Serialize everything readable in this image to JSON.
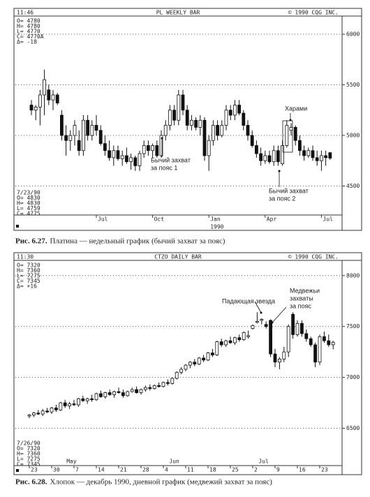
{
  "chart_data": [
    {
      "type": "candlestick",
      "header_left": "11:46",
      "title": "PL WEEKLY BAR",
      "copyright": "© 1990 CQG INC.",
      "info": [
        "O= 4780",
        "H= 4780",
        "L= 4770",
        "C= 4770A",
        "Δ= -18"
      ],
      "last_bar": [
        "7/23/90",
        "O= 4830",
        "H= 4830",
        "L= 4759",
        "C= 4775"
      ],
      "figure_number": "Рис. 6.27.",
      "caption": "Платина — недельный график (бычий захват за пояс)",
      "annotations": [
        {
          "text": [
            "Бычий захват",
            "за пояс 1"
          ]
        },
        {
          "text": [
            "Харами"
          ]
        },
        {
          "text": [
            "Бычий захват",
            "за пояс 2"
          ]
        }
      ],
      "ylim": [
        4200,
        6200
      ],
      "yticks": [
        4500,
        5000,
        5500,
        6000
      ],
      "grid": true,
      "categories": [
        null,
        null,
        null,
        null,
        null,
        null,
        null,
        null,
        null,
        null,
        null,
        null,
        null,
        null,
        null,
        "Jul",
        null,
        null,
        null,
        null,
        null,
        null,
        null,
        null,
        null,
        null,
        null,
        null,
        "Oct",
        null,
        null,
        null,
        null,
        null,
        null,
        null,
        null,
        null,
        null,
        null,
        null,
        "Jan",
        null,
        null,
        null,
        null,
        null,
        null,
        null,
        null,
        null,
        null,
        null,
        null,
        "Apr",
        null,
        null,
        null,
        null,
        null,
        null,
        null,
        null,
        null,
        null,
        null,
        null,
        "Jul",
        null,
        null
      ],
      "year_categories": [
        null,
        null,
        null,
        null,
        null,
        null,
        null,
        null,
        null,
        null,
        null,
        null,
        null,
        null,
        null,
        null,
        null,
        null,
        null,
        null,
        null,
        null,
        null,
        null,
        null,
        null,
        null,
        null,
        null,
        null,
        null,
        null,
        null,
        null,
        null,
        null,
        null,
        null,
        null,
        null,
        null,
        "1990",
        null,
        null,
        null,
        null,
        null,
        null,
        null,
        null,
        null,
        null,
        null,
        null,
        null,
        null,
        null,
        null,
        null,
        null,
        null,
        null,
        null,
        null,
        null,
        null,
        null,
        null,
        null,
        null
      ],
      "candles": [
        [
          5300,
          5350,
          5200,
          5250
        ],
        [
          5250,
          5300,
          5150,
          5280
        ],
        [
          5280,
          5450,
          5100,
          5400
        ],
        [
          5400,
          5650,
          5200,
          5550
        ],
        [
          5450,
          5500,
          5300,
          5350
        ],
        [
          5350,
          5450,
          5250,
          5400
        ],
        [
          5400,
          5420,
          5300,
          5320
        ],
        [
          5200,
          5250,
          4950,
          5000
        ],
        [
          5000,
          5100,
          4800,
          4950
        ],
        [
          4950,
          5050,
          4850,
          5000
        ],
        [
          5000,
          5150,
          4900,
          5100
        ],
        [
          4950,
          5050,
          4800,
          4850
        ],
        [
          4850,
          5200,
          4800,
          5150
        ],
        [
          5150,
          5200,
          4950,
          5000
        ],
        [
          5000,
          5150,
          4950,
          5100
        ],
        [
          5100,
          5200,
          5000,
          5050
        ],
        [
          5050,
          5100,
          4900,
          4920
        ],
        [
          4920,
          5000,
          4800,
          4850
        ],
        [
          4850,
          4950,
          4750,
          4780
        ],
        [
          4780,
          4900,
          4700,
          4850
        ],
        [
          4850,
          4900,
          4750,
          4770
        ],
        [
          4770,
          4850,
          4700,
          4800
        ],
        [
          4800,
          4880,
          4720,
          4740
        ],
        [
          4740,
          4820,
          4660,
          4780
        ],
        [
          4780,
          4800,
          4650,
          4700
        ],
        [
          4700,
          4850,
          4650,
          4820
        ],
        [
          4820,
          4950,
          4780,
          4900
        ],
        [
          4900,
          4950,
          4800,
          4850
        ],
        [
          4850,
          4920,
          4780,
          4900
        ],
        [
          4900,
          4950,
          4780,
          4800
        ],
        [
          4800,
          5050,
          4780,
          5000
        ],
        [
          5000,
          5150,
          4950,
          5100
        ],
        [
          5100,
          5300,
          5050,
          5250
        ],
        [
          5250,
          5300,
          5100,
          5150
        ],
        [
          5150,
          5450,
          5100,
          5400
        ],
        [
          5400,
          5450,
          5200,
          5250
        ],
        [
          5250,
          5300,
          5050,
          5100
        ],
        [
          5100,
          5200,
          5050,
          5150
        ],
        [
          5150,
          5180,
          5050,
          5080
        ],
        [
          5080,
          5200,
          5000,
          5150
        ],
        [
          5150,
          5180,
          4750,
          4800
        ],
        [
          4800,
          5000,
          4650,
          4950
        ],
        [
          4950,
          5150,
          4900,
          5100
        ],
        [
          5100,
          5150,
          4950,
          5000
        ],
        [
          5000,
          5150,
          4980,
          5100
        ],
        [
          5100,
          5300,
          5050,
          5250
        ],
        [
          5250,
          5300,
          5150,
          5200
        ],
        [
          5200,
          5350,
          5150,
          5300
        ],
        [
          5300,
          5350,
          5200,
          5220
        ],
        [
          5220,
          5250,
          5050,
          5100
        ],
        [
          5100,
          5150,
          4950,
          5000
        ],
        [
          5000,
          5050,
          4880,
          4900
        ],
        [
          4900,
          4950,
          4780,
          4820
        ],
        [
          4820,
          4880,
          4700,
          4750
        ],
        [
          4750,
          4850,
          4720,
          4800
        ],
        [
          4800,
          4850,
          4720,
          4740
        ],
        [
          4740,
          4900,
          4700,
          4850
        ],
        [
          4850,
          4900,
          4700,
          4740
        ],
        [
          4720,
          4950,
          4700,
          4900
        ],
        [
          4900,
          5150,
          4880,
          5100
        ],
        [
          5050,
          5120,
          5000,
          5080
        ],
        [
          5080,
          5100,
          4900,
          4950
        ],
        [
          4950,
          5000,
          4800,
          4850
        ],
        [
          4850,
          4900,
          4750,
          4800
        ],
        [
          4800,
          4880,
          4780,
          4850
        ],
        [
          4850,
          4900,
          4750,
          4780
        ],
        [
          4780,
          4850,
          4700,
          4750
        ],
        [
          4750,
          4850,
          4650,
          4800
        ],
        [
          4800,
          4850,
          4700,
          4780
        ],
        [
          4830,
          4830,
          4759,
          4775
        ]
      ]
    },
    {
      "type": "candlestick",
      "header_left": "11:30",
      "title": "CTZO DAILY BAR",
      "copyright": "© 1990 CQG INC.",
      "info": [
        "O= 7320",
        "H= 7360",
        "L= 7275",
        "C= 7345",
        "Δ= +16"
      ],
      "last_bar": [
        "7/26/90",
        "O= 7320",
        "H= 7360",
        "L= 7275",
        "C= 7345"
      ],
      "figure_number": "Рис. 6.28.",
      "caption": "Хлопок — декабрь 1990, дневной график (медвежий захват за пояс)",
      "annotations": [
        {
          "text": [
            "Падающая звезда"
          ]
        },
        {
          "text": [
            "Медвежьи",
            "захваты",
            "за пояс"
          ]
        }
      ],
      "ylim": [
        6250,
        8170
      ],
      "yticks": [
        6500,
        7000,
        7500,
        8000
      ],
      "grid": true,
      "categories": [
        "23",
        null,
        null,
        null,
        null,
        "30",
        null,
        null,
        null,
        null,
        "7",
        null,
        null,
        null,
        null,
        "14",
        null,
        null,
        null,
        null,
        "21",
        null,
        null,
        null,
        null,
        "28",
        null,
        null,
        null,
        null,
        "4",
        null,
        null,
        null,
        null,
        "11",
        null,
        null,
        null,
        null,
        "18",
        null,
        null,
        null,
        null,
        "25",
        null,
        null,
        null,
        null,
        "2",
        null,
        null,
        null,
        null,
        "9",
        null,
        null,
        null,
        null,
        "16",
        null,
        null,
        null,
        null,
        "23",
        null,
        null,
        null
      ],
      "month_categories": [
        null,
        null,
        null,
        null,
        null,
        null,
        null,
        null,
        "May",
        null,
        null,
        null,
        null,
        null,
        null,
        null,
        null,
        null,
        null,
        null,
        null,
        null,
        null,
        null,
        null,
        null,
        null,
        null,
        null,
        null,
        null,
        "Jun",
        null,
        null,
        null,
        null,
        null,
        null,
        null,
        null,
        null,
        null,
        null,
        null,
        null,
        null,
        null,
        null,
        null,
        null,
        null,
        "Jul",
        null,
        null,
        null,
        null,
        null,
        null,
        null,
        null,
        null,
        null,
        null,
        null,
        null,
        null,
        null,
        null,
        null
      ],
      "candles": [
        [
          6620,
          6640,
          6600,
          6630
        ],
        [
          6630,
          6660,
          6610,
          6650
        ],
        [
          6650,
          6680,
          6630,
          6640
        ],
        [
          6640,
          6690,
          6620,
          6670
        ],
        [
          6670,
          6700,
          6650,
          6660
        ],
        [
          6660,
          6710,
          6640,
          6700
        ],
        [
          6700,
          6730,
          6660,
          6680
        ],
        [
          6680,
          6760,
          6670,
          6750
        ],
        [
          6750,
          6780,
          6700,
          6720
        ],
        [
          6720,
          6760,
          6690,
          6740
        ],
        [
          6740,
          6780,
          6720,
          6730
        ],
        [
          6730,
          6800,
          6710,
          6790
        ],
        [
          6790,
          6820,
          6760,
          6770
        ],
        [
          6770,
          6800,
          6740,
          6790
        ],
        [
          6790,
          6830,
          6760,
          6780
        ],
        [
          6780,
          6850,
          6770,
          6840
        ],
        [
          6840,
          6870,
          6800,
          6810
        ],
        [
          6810,
          6860,
          6790,
          6850
        ],
        [
          6850,
          6880,
          6820,
          6830
        ],
        [
          6830,
          6870,
          6800,
          6860
        ],
        [
          6860,
          6900,
          6840,
          6850
        ],
        [
          6850,
          6880,
          6800,
          6820
        ],
        [
          6820,
          6870,
          6810,
          6860
        ],
        [
          6860,
          6900,
          6850,
          6880
        ],
        [
          6880,
          6910,
          6840,
          6850
        ],
        [
          6850,
          6890,
          6830,
          6880
        ],
        [
          6880,
          6920,
          6860,
          6900
        ],
        [
          6900,
          6930,
          6870,
          6890
        ],
        [
          6890,
          6930,
          6880,
          6920
        ],
        [
          6920,
          6950,
          6900,
          6910
        ],
        [
          6910,
          6960,
          6900,
          6950
        ],
        [
          6950,
          6980,
          6920,
          6940
        ],
        [
          6940,
          7000,
          6930,
          6990
        ],
        [
          6990,
          7060,
          6980,
          7050
        ],
        [
          7050,
          7100,
          7030,
          7080
        ],
        [
          7080,
          7130,
          7060,
          7120
        ],
        [
          7120,
          7160,
          7090,
          7150
        ],
        [
          7150,
          7180,
          7110,
          7130
        ],
        [
          7130,
          7200,
          7120,
          7190
        ],
        [
          7190,
          7220,
          7150,
          7170
        ],
        [
          7170,
          7250,
          7160,
          7240
        ],
        [
          7240,
          7280,
          7200,
          7220
        ],
        [
          7220,
          7360,
          7210,
          7350
        ],
        [
          7350,
          7380,
          7300,
          7320
        ],
        [
          7320,
          7370,
          7300,
          7360
        ],
        [
          7360,
          7400,
          7330,
          7340
        ],
        [
          7340,
          7400,
          7320,
          7390
        ],
        [
          7390,
          7420,
          7350,
          7370
        ],
        [
          7370,
          7450,
          7360,
          7440
        ],
        [
          7400,
          7460,
          7380,
          7410
        ],
        [
          7480,
          7520,
          7470,
          7510
        ],
        [
          7540,
          7640,
          7530,
          7550
        ],
        [
          7560,
          7580,
          7520,
          7570
        ],
        [
          7520,
          7550,
          7480,
          7500
        ],
        [
          7560,
          7570,
          7200,
          7230
        ],
        [
          7230,
          7280,
          7100,
          7150
        ],
        [
          7150,
          7200,
          7080,
          7180
        ],
        [
          7180,
          7300,
          7150,
          7250
        ],
        [
          7250,
          7520,
          7200,
          7500
        ],
        [
          7620,
          7640,
          7380,
          7420
        ],
        [
          7420,
          7560,
          7400,
          7530
        ],
        [
          7530,
          7560,
          7400,
          7430
        ],
        [
          7430,
          7470,
          7350,
          7380
        ],
        [
          7380,
          7400,
          7300,
          7320
        ],
        [
          7320,
          7340,
          7100,
          7150
        ],
        [
          7150,
          7420,
          7120,
          7400
        ],
        [
          7400,
          7450,
          7340,
          7360
        ],
        [
          7360,
          7420,
          7300,
          7320
        ],
        [
          7320,
          7360,
          7275,
          7345
        ]
      ]
    }
  ]
}
